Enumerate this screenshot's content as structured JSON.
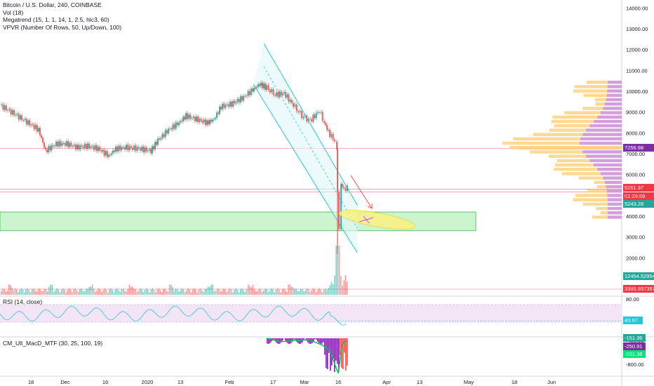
{
  "legend": {
    "line1": "Bitcoin / U.S. Dollar, 240, COINBASE",
    "line2": "Vol (18)",
    "line3": "Megatrend (15, 1, 1, 14, 1, 2.5, hlc3, 60)",
    "line4": "VPVR (Number Of Rows, 50, Up/Down, 100)",
    "rsi": "RSI (14, close)",
    "macd": "CM_Ult_MacD_MTF (30, 25, 100, 19)"
  },
  "price_axis": {
    "ticks": [
      "14000.00",
      "13000.00",
      "12000.00",
      "11000.00",
      "10000.00",
      "9000.00",
      "8000.00",
      "7000.00",
      "6000.00",
      "5000.00",
      "4000.00",
      "3000.00",
      "2000.00"
    ],
    "badges": [
      {
        "text": "7256.98",
        "color": "#7b2ea0",
        "label": "level-7256"
      },
      {
        "text": "5261.97",
        "color": "#f23645",
        "label": "last-price"
      },
      {
        "text": "01:26:59",
        "color": "#f23645",
        "label": "countdown"
      },
      {
        "text": "5243.28",
        "color": "#26a69a",
        "label": "megatrend-value"
      },
      {
        "text": "12454.529542",
        "color": "#26a69a",
        "label": "volume-value"
      },
      {
        "text": "3386.857357",
        "color": "#f23645",
        "label": "volume-ma"
      }
    ]
  },
  "rsi_axis": {
    "ticks": [
      "80.00",
      "40.00"
    ],
    "badge": "43.97",
    "badge_color": "#26c6da"
  },
  "macd_axis": {
    "ticks": [
      "-400.00",
      "-800.00"
    ],
    "badges": [
      {
        "text": "-151.36",
        "color": "#26a69a"
      },
      {
        "text": "-250.91",
        "color": "#7b2ea0"
      },
      {
        "text": "-281.36",
        "color": "#00e676"
      }
    ]
  },
  "time_axis": [
    "18",
    "Dec",
    "16",
    "2020",
    "13",
    "Feb",
    "17",
    "Mar",
    "16",
    "Apr",
    "13",
    "May",
    "18",
    "Jun"
  ],
  "chart_data": {
    "type": "candlestick",
    "symbol": "Bitcoin / U.S. Dollar",
    "interval": "240",
    "exchange": "COINBASE",
    "approx_close_path": [
      [
        "Nov 18",
        9100
      ],
      [
        "Nov 25",
        7400
      ],
      [
        "Dec 1",
        7500
      ],
      [
        "Dec 8",
        7500
      ],
      [
        "Dec 16",
        7100
      ],
      [
        "Dec 18",
        7200
      ],
      [
        "Dec 25",
        7300
      ],
      [
        "Jan 1",
        7200
      ],
      [
        "Jan 6",
        7600
      ],
      [
        "Jan 13",
        8500
      ],
      [
        "Jan 20",
        8650
      ],
      [
        "Jan 27",
        9100
      ],
      [
        "Feb 3",
        9400
      ],
      [
        "Feb 10",
        10200
      ],
      [
        "Feb 13",
        10400
      ],
      [
        "Feb 17",
        9800
      ],
      [
        "Feb 24",
        9400
      ],
      [
        "Mar 1",
        8600
      ],
      [
        "Mar 6",
        9100
      ],
      [
        "Mar 10",
        7900
      ],
      [
        "Mar 12",
        5000
      ],
      [
        "Mar 13",
        3800
      ],
      [
        "Mar 14",
        5600
      ],
      [
        "Mar 16",
        5262
      ]
    ],
    "horizontal_levels": [
      7256.98,
      5261.97,
      5243.28
    ],
    "highlight_zone": {
      "from": 3300,
      "to": 4200,
      "color": "#b9f6ca"
    },
    "ylim": [
      1000,
      14500
    ]
  }
}
